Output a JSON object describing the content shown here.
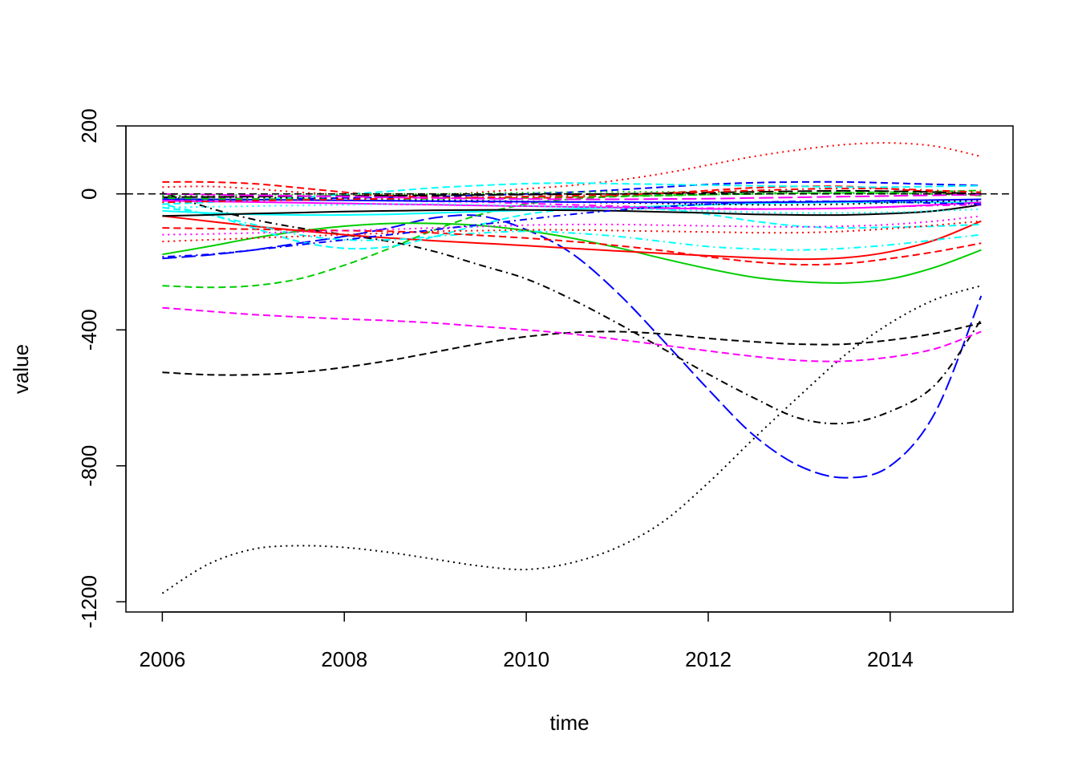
{
  "chart_data": {
    "type": "line",
    "title": "",
    "xlabel": "time",
    "ylabel": "value",
    "xlim": [
      2005.6,
      2015.35
    ],
    "ylim": [
      -1230,
      200
    ],
    "x_ticks": [
      2006,
      2008,
      2010,
      2012,
      2014
    ],
    "y_ticks": [
      200,
      0,
      -400,
      -800,
      -1200
    ],
    "reference_line": {
      "y": 0,
      "style": "dashed",
      "color": "#000000"
    },
    "grid": false,
    "legend": "none",
    "x": [
      2006,
      2006.5,
      2007,
      2007.5,
      2008,
      2008.5,
      2009,
      2009.5,
      2010,
      2010.5,
      2011,
      2011.5,
      2012,
      2012.5,
      2013,
      2013.5,
      2014,
      2014.5,
      2015
    ],
    "series": [
      {
        "color": "#000000",
        "dash": "dotted",
        "values": [
          -1175,
          -1090,
          -1045,
          -1035,
          -1040,
          -1055,
          -1075,
          -1095,
          -1105,
          -1085,
          -1040,
          -965,
          -850,
          -720,
          -595,
          -475,
          -380,
          -310,
          -270
        ]
      },
      {
        "color": "#0000FF",
        "dash": "longdash",
        "values": [
          -190,
          -180,
          -165,
          -145,
          -125,
          -100,
          -70,
          -65,
          -105,
          -175,
          -290,
          -430,
          -575,
          -710,
          -800,
          -835,
          -800,
          -640,
          -300
        ]
      },
      {
        "color": "#000000",
        "dash": "dashdot",
        "values": [
          5,
          -40,
          -75,
          -100,
          -120,
          -140,
          -170,
          -210,
          -250,
          -310,
          -380,
          -455,
          -530,
          -600,
          -660,
          -675,
          -640,
          -560,
          -370
        ]
      },
      {
        "color": "#000000",
        "dash": "dashed",
        "values": [
          -525,
          -532,
          -532,
          -525,
          -510,
          -490,
          -465,
          -440,
          -420,
          -408,
          -405,
          -412,
          -425,
          -435,
          -442,
          -442,
          -430,
          -410,
          -380
        ]
      },
      {
        "color": "#FF00FF",
        "dash": "dashed",
        "values": [
          -335,
          -345,
          -355,
          -362,
          -368,
          -373,
          -380,
          -390,
          -400,
          -412,
          -428,
          -445,
          -462,
          -478,
          -490,
          -492,
          -480,
          -455,
          -405
        ]
      },
      {
        "color": "#00CD00",
        "dash": "dashed",
        "values": [
          -270,
          -275,
          -270,
          -250,
          -210,
          -160,
          -105,
          -60,
          -30,
          -15,
          -8,
          -5,
          -2,
          0,
          2,
          4,
          5,
          7,
          10
        ]
      },
      {
        "color": "#00CD00",
        "dash": "solid",
        "values": [
          -178,
          -155,
          -130,
          -110,
          -95,
          -87,
          -87,
          -93,
          -108,
          -130,
          -158,
          -190,
          -220,
          -245,
          -258,
          -262,
          -250,
          -215,
          -165
        ]
      },
      {
        "color": "#FF0000",
        "dash": "solid",
        "values": [
          -65,
          -80,
          -95,
          -108,
          -120,
          -130,
          -138,
          -145,
          -152,
          -160,
          -168,
          -175,
          -182,
          -188,
          -192,
          -188,
          -170,
          -135,
          -80
        ]
      },
      {
        "color": "#00FFFF",
        "dash": "dashdot",
        "values": [
          -30,
          -60,
          -90,
          -120,
          -135,
          -135,
          -125,
          -115,
          -110,
          -115,
          -125,
          -140,
          -155,
          -162,
          -165,
          -160,
          -150,
          -135,
          -120
        ]
      },
      {
        "color": "#FF0000",
        "dash": "dashed",
        "values": [
          -100,
          -102,
          -104,
          -106,
          -108,
          -110,
          -115,
          -122,
          -130,
          -140,
          -152,
          -167,
          -185,
          -200,
          -208,
          -205,
          -190,
          -170,
          -145
        ]
      },
      {
        "color": "#00FFFF",
        "dash": "dashed",
        "values": [
          -40,
          -60,
          -100,
          -140,
          -160,
          -155,
          -125,
          -90,
          -60,
          -45,
          -40,
          -45,
          -60,
          -80,
          -95,
          -100,
          -98,
          -95,
          -90
        ]
      },
      {
        "color": "#FF0000",
        "dash": "dotted",
        "values": [
          20,
          22,
          15,
          5,
          -2,
          -4,
          -3,
          5,
          15,
          25,
          40,
          60,
          85,
          110,
          130,
          145,
          150,
          140,
          110
        ]
      },
      {
        "color": "#00FFFF",
        "dash": "solid",
        "values": [
          -50,
          -56,
          -60,
          -62,
          -62,
          -60,
          -56,
          -52,
          -48,
          -44,
          -40,
          -36,
          -32,
          -28,
          -26,
          -25,
          -25,
          -25,
          -25
        ]
      },
      {
        "color": "#000000",
        "dash": "solid",
        "values": [
          -65,
          -62,
          -58,
          -55,
          -52,
          -50,
          -48,
          -47,
          -47,
          -48,
          -50,
          -53,
          -56,
          -60,
          -62,
          -62,
          -58,
          -50,
          -32
        ]
      },
      {
        "color": "#0000FF",
        "dash": "dashed",
        "values": [
          -20,
          -18,
          -16,
          -14,
          -12,
          -10,
          -8,
          -4,
          0,
          5,
          12,
          20,
          28,
          33,
          35,
          35,
          32,
          28,
          25
        ]
      },
      {
        "color": "#FF0000",
        "dash": "dashed",
        "values": [
          35,
          35,
          30,
          18,
          5,
          -5,
          -10,
          -12,
          -12,
          -10,
          -5,
          2,
          10,
          18,
          22,
          22,
          15,
          5,
          -5
        ]
      },
      {
        "color": "#FF00FF",
        "dash": "dashdot",
        "values": [
          -10,
          -12,
          -14,
          -16,
          -18,
          -20,
          -22,
          -24,
          -28,
          -32,
          -36,
          -40,
          -42,
          -44,
          -44,
          -42,
          -38,
          -34,
          -32
        ]
      },
      {
        "color": "#00FFFF",
        "dash": "dashed",
        "values": [
          -30,
          -25,
          -18,
          -10,
          -2,
          8,
          18,
          25,
          30,
          32,
          30,
          28,
          26,
          24,
          22,
          20,
          20,
          22,
          24
        ]
      },
      {
        "color": "#FF00FF",
        "dash": "dotted",
        "values": [
          -120,
          -118,
          -115,
          -112,
          -108,
          -104,
          -100,
          -96,
          -92,
          -90,
          -90,
          -92,
          -94,
          -96,
          -97,
          -95,
          -90,
          -80,
          -65
        ]
      },
      {
        "color": "#FF0000",
        "dash": "dotted",
        "values": [
          -140,
          -135,
          -130,
          -125,
          -120,
          -115,
          -110,
          -108,
          -106,
          -106,
          -108,
          -110,
          -112,
          -114,
          -114,
          -110,
          -102,
          -92,
          -80
        ]
      },
      {
        "color": "#000000",
        "dash": "dotted",
        "values": [
          -5,
          -8,
          -10,
          -12,
          -14,
          -16,
          -18,
          -20,
          -22,
          -24,
          -26,
          -28,
          -30,
          -32,
          -32,
          -30,
          -26,
          -22,
          -20
        ]
      },
      {
        "color": "#0000FF",
        "dash": "solid",
        "values": [
          -15,
          -16,
          -17,
          -18,
          -19,
          -20,
          -21,
          -22,
          -23,
          -24,
          -24,
          -25,
          -25,
          -25,
          -24,
          -22,
          -20,
          -18,
          -16
        ]
      },
      {
        "color": "#FF00FF",
        "dash": "solid",
        "values": [
          -20,
          -22,
          -24,
          -26,
          -28,
          -30,
          -32,
          -34,
          -36,
          -38,
          -40,
          -42,
          -44,
          -45,
          -44,
          -42,
          -38,
          -32,
          -25
        ]
      },
      {
        "color": "#00CD00",
        "dash": "dotted",
        "values": [
          -5,
          -4,
          -3,
          -2,
          -1,
          0,
          0,
          2,
          4,
          5,
          6,
          6,
          5,
          4,
          3,
          2,
          1,
          0,
          -2
        ]
      },
      {
        "color": "#0000FF",
        "dash": "dashdot",
        "values": [
          -185,
          -178,
          -165,
          -150,
          -135,
          -120,
          -105,
          -90,
          -75,
          -60,
          -48,
          -38,
          -30,
          -25,
          -22,
          -22,
          -24,
          -27,
          -30
        ]
      },
      {
        "color": "#000000",
        "dash": "longdash",
        "values": [
          -10,
          -9,
          -8,
          -7,
          -6,
          -5,
          -4,
          -3,
          -2,
          -1,
          0,
          2,
          4,
          6,
          8,
          9,
          8,
          5,
          0
        ]
      },
      {
        "color": "#00CD00",
        "dash": "dashdot",
        "values": [
          -12,
          -14,
          -15,
          -16,
          -16,
          -15,
          -14,
          -12,
          -10,
          -8,
          -6,
          -4,
          -2,
          0,
          2,
          3,
          2,
          0,
          -5
        ]
      },
      {
        "color": "#FF0000",
        "dash": "dashdot",
        "values": [
          -25,
          -22,
          -20,
          -18,
          -16,
          -14,
          -12,
          -10,
          -8,
          -5,
          -2,
          2,
          6,
          10,
          14,
          16,
          15,
          10,
          5
        ]
      },
      {
        "color": "#00FFFF",
        "dash": "dotted",
        "values": [
          -40,
          -38,
          -36,
          -34,
          -32,
          -30,
          -30,
          -32,
          -35,
          -38,
          -42,
          -46,
          -50,
          -54,
          -56,
          -56,
          -54,
          -50,
          -45
        ]
      },
      {
        "color": "#FF00FF",
        "dash": "longdash",
        "values": [
          0,
          -2,
          -4,
          -6,
          -8,
          -10,
          -12,
          -14,
          -15,
          -16,
          -16,
          -15,
          -14,
          -12,
          -10,
          -8,
          -6,
          -4,
          -2
        ]
      }
    ]
  }
}
